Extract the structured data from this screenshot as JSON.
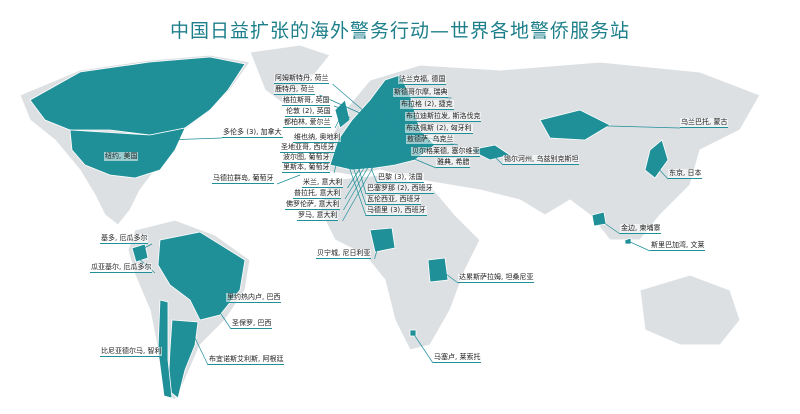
{
  "title": "中国日益扩张的海外警务行动—世界各地警侨服务站",
  "colors": {
    "highlight": "#1f8f98",
    "land": "#dde0e3",
    "title": "#1d7f8a"
  },
  "labels": [
    {
      "text": "阿姆斯特丹, 荷兰"
    },
    {
      "text": "鹿特丹, 荷兰"
    },
    {
      "text": "格拉斯哥, 英国"
    },
    {
      "text": "伦敦 (2), 英国"
    },
    {
      "text": "都柏林, 爱尔兰"
    },
    {
      "text": "多伦多 (3), 加拿大"
    },
    {
      "text": "维也纳, 奥地利"
    },
    {
      "text": "圣地亚哥, 西班牙"
    },
    {
      "text": "波尔图, 葡萄牙"
    },
    {
      "text": "里斯本, 葡萄牙"
    },
    {
      "text": "马德拉群岛, 葡萄牙"
    },
    {
      "text": "米兰, 意大利"
    },
    {
      "text": "普拉托, 意大利"
    },
    {
      "text": "佛罗伦萨, 意大利"
    },
    {
      "text": "罗马, 意大利"
    },
    {
      "text": "法兰克福, 德国"
    },
    {
      "text": "斯德哥尔摩, 瑞典"
    },
    {
      "text": "布拉格 (2), 捷克"
    },
    {
      "text": "布拉迪斯拉发, 斯洛伐克"
    },
    {
      "text": "布达佩斯 (2), 匈牙利"
    },
    {
      "text": "敖德萨, 乌克兰"
    },
    {
      "text": "贝尔格莱德, 塞尔维亚"
    },
    {
      "text": "雅典, 希腊"
    },
    {
      "text": "巴黎 (3), 法国"
    },
    {
      "text": "巴塞罗那 (2), 西班牙"
    },
    {
      "text": "瓦伦西亚, 西班牙"
    },
    {
      "text": "马德里 (3), 西班牙"
    },
    {
      "text": "锡尔河州, 乌兹别克斯坦"
    },
    {
      "text": "乌兰巴托, 蒙古"
    },
    {
      "text": "东京, 日本"
    },
    {
      "text": "金边, 柬埔寨"
    },
    {
      "text": "斯里巴加湾, 文莱"
    },
    {
      "text": "纽约, 美国"
    },
    {
      "text": "基多, 厄瓜多尔"
    },
    {
      "text": "瓜亚基尔, 厄瓜多尔"
    },
    {
      "text": "贝宁城, 尼日利亚"
    },
    {
      "text": "达累斯萨拉姆, 坦桑尼亚"
    },
    {
      "text": "里约热内卢, 巴西"
    },
    {
      "text": "圣保罗, 巴西"
    },
    {
      "text": "比尼亚德尔马, 智利"
    },
    {
      "text": "布宜诺斯艾利斯, 阿根廷"
    },
    {
      "text": "马塞卢, 莱索托"
    }
  ]
}
